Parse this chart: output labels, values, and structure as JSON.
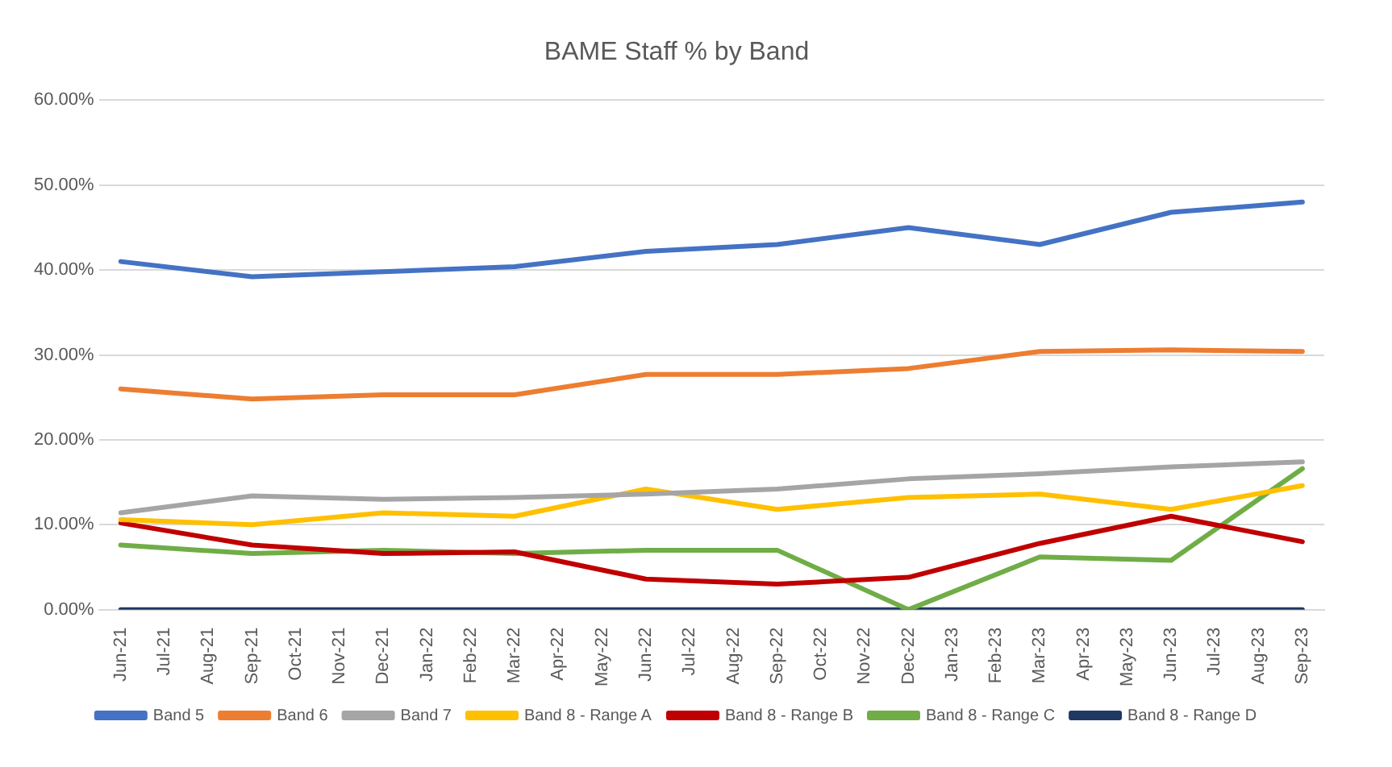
{
  "chart_data": {
    "type": "line",
    "title": "BAME Staff % by Band",
    "categories": [
      "Jun-21",
      "Jul-21",
      "Aug-21",
      "Sep-21",
      "Oct-21",
      "Nov-21",
      "Dec-21",
      "Jan-22",
      "Feb-22",
      "Mar-22",
      "Apr-22",
      "May-22",
      "Jun-22",
      "Jul-22",
      "Aug-22",
      "Sep-22",
      "Oct-22",
      "Nov-22",
      "Dec-22",
      "Jan-23",
      "Feb-23",
      "Mar-23",
      "Apr-23",
      "May-23",
      "Jun-23",
      "Jul-23",
      "Aug-23",
      "Sep-23"
    ],
    "series": [
      {
        "name": "Band 5",
        "color": "#4472c4",
        "values": [
          41,
          null,
          null,
          39.2,
          null,
          null,
          39.8,
          null,
          null,
          40.4,
          null,
          null,
          42.2,
          null,
          null,
          43,
          null,
          null,
          45,
          null,
          null,
          43,
          null,
          null,
          46.8,
          null,
          null,
          48
        ]
      },
      {
        "name": "Band 6",
        "color": "#ed7d31",
        "values": [
          26,
          null,
          null,
          24.8,
          null,
          null,
          25.3,
          null,
          null,
          25.3,
          null,
          null,
          27.7,
          null,
          null,
          27.7,
          null,
          null,
          28.4,
          null,
          null,
          30.4,
          null,
          null,
          30.6,
          null,
          null,
          30.4
        ]
      },
      {
        "name": "Band 7",
        "color": "#a5a5a5",
        "values": [
          11.4,
          null,
          null,
          13.4,
          null,
          null,
          13,
          null,
          null,
          13.2,
          null,
          null,
          13.6,
          null,
          null,
          14.2,
          null,
          null,
          15.4,
          null,
          null,
          16,
          null,
          null,
          16.8,
          null,
          null,
          17.4
        ]
      },
      {
        "name": "Band 8 - Range A",
        "color": "#ffc000",
        "values": [
          10.6,
          null,
          null,
          10,
          null,
          null,
          11.4,
          null,
          null,
          11,
          null,
          null,
          14.2,
          null,
          null,
          11.8,
          null,
          null,
          13.2,
          null,
          null,
          13.6,
          null,
          null,
          11.8,
          null,
          null,
          14.6
        ]
      },
      {
        "name": "Band 8 - Range B",
        "color": "#c00000",
        "values": [
          10.2,
          null,
          null,
          7.6,
          null,
          null,
          6.6,
          null,
          null,
          6.8,
          null,
          null,
          3.6,
          null,
          null,
          3,
          null,
          null,
          3.8,
          null,
          null,
          7.8,
          null,
          null,
          11,
          null,
          null,
          8
        ]
      },
      {
        "name": "Band 8 - Range C",
        "color": "#70ad47",
        "values": [
          7.6,
          null,
          null,
          6.6,
          null,
          null,
          7,
          null,
          null,
          6.6,
          null,
          null,
          7,
          null,
          null,
          7,
          null,
          null,
          0,
          null,
          null,
          6.2,
          null,
          null,
          5.8,
          null,
          null,
          16.6
        ]
      },
      {
        "name": "Band 8 - Range D",
        "color": "#203864",
        "values": [
          0,
          null,
          null,
          0,
          null,
          null,
          0,
          null,
          null,
          0,
          null,
          null,
          0,
          null,
          null,
          0,
          null,
          null,
          0,
          null,
          null,
          0,
          null,
          null,
          0,
          null,
          null,
          0
        ]
      }
    ],
    "ylim": [
      0,
      60
    ],
    "yticks": [
      {
        "value": 0,
        "label": "0.00%"
      },
      {
        "value": 10,
        "label": "10.00%"
      },
      {
        "value": 20,
        "label": "20.00%"
      },
      {
        "value": 30,
        "label": "30.00%"
      },
      {
        "value": 40,
        "label": "40.00%"
      },
      {
        "value": 50,
        "label": "50.00%"
      },
      {
        "value": 60,
        "label": "60.00%"
      }
    ],
    "grid": "y",
    "legend": "bottom",
    "marker": "none",
    "line_style": "solid"
  }
}
